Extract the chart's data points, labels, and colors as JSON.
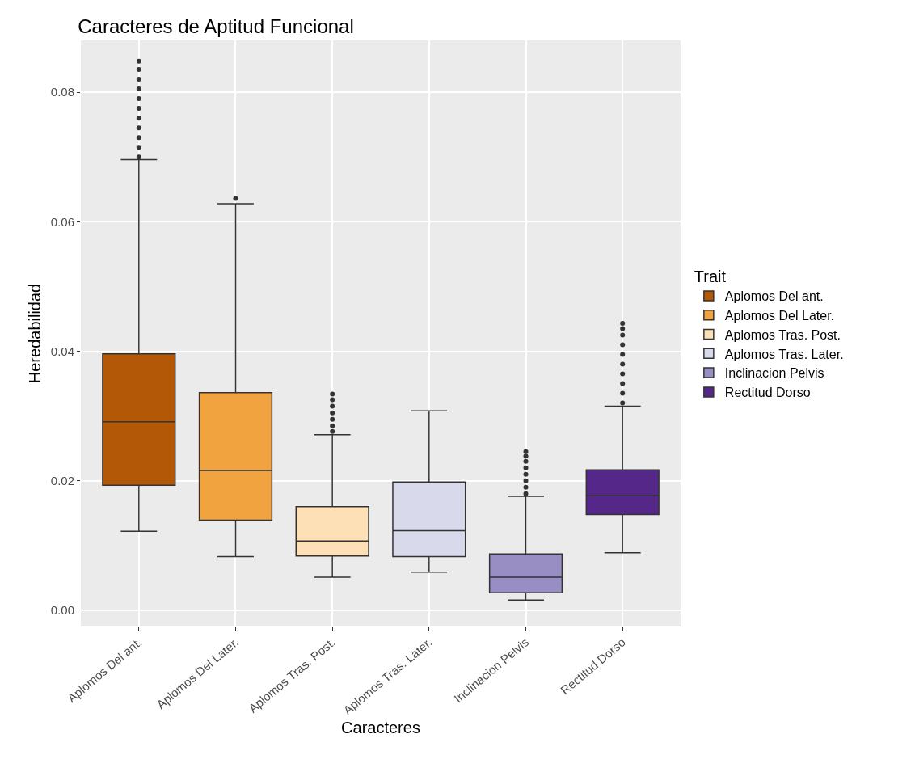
{
  "chart_data": {
    "type": "box",
    "title": "Caracteres de Aptitud Funcional",
    "xlabel": "Caracteres",
    "ylabel": "Heredabilidad",
    "legend_title": "Trait",
    "categories": [
      "Aplomos Del ant.",
      "Aplomos Del Later.",
      "Aplomos Tras. Post.",
      "Aplomos Tras. Later.",
      "Inclinacion Pelvis",
      "Rectitud Dorso"
    ],
    "series": [
      {
        "name": "Aplomos Del ant.",
        "color": "#b35806",
        "boxes": [
          {
            "low": 0.0122,
            "q1": 0.0193,
            "median": 0.0291,
            "q3": 0.0396,
            "high": 0.0696,
            "outliers": [
              0.07,
              0.0715,
              0.073,
              0.0745,
              0.076,
              0.0775,
              0.079,
              0.0805,
              0.082,
              0.0835,
              0.0848
            ]
          },
          null,
          null,
          null,
          null,
          null
        ]
      },
      {
        "name": "Aplomos Del Later.",
        "color": "#f1a340",
        "boxes": [
          null,
          {
            "low": 0.0083,
            "q1": 0.0139,
            "median": 0.0216,
            "q3": 0.0336,
            "high": 0.0628,
            "outliers": [
              0.0636
            ]
          },
          null,
          null,
          null,
          null
        ]
      },
      {
        "name": "Aplomos Tras. Post.",
        "color": "#fee0b6",
        "boxes": [
          null,
          null,
          {
            "low": 0.0051,
            "q1": 0.0084,
            "median": 0.0107,
            "q3": 0.016,
            "high": 0.0271,
            "outliers": [
              0.0276,
              0.0285,
              0.0295,
              0.0305,
              0.0315,
              0.0325,
              0.0334
            ]
          },
          null,
          null,
          null
        ]
      },
      {
        "name": "Aplomos Tras. Later.",
        "color": "#d8daeb",
        "boxes": [
          null,
          null,
          null,
          {
            "low": 0.0059,
            "q1": 0.0083,
            "median": 0.0123,
            "q3": 0.0198,
            "high": 0.0308
          },
          null,
          null
        ]
      },
      {
        "name": "Inclinacion Pelvis",
        "color": "#998ec3",
        "boxes": [
          null,
          null,
          null,
          null,
          {
            "low": 0.0016,
            "q1": 0.0027,
            "median": 0.0051,
            "q3": 0.0087,
            "high": 0.0176,
            "outliers": [
              0.018,
              0.019,
              0.02,
              0.021,
              0.022,
              0.023,
              0.0238,
              0.0245
            ]
          },
          null
        ]
      },
      {
        "name": "Rectitud Dorso",
        "color": "#542788",
        "boxes": [
          null,
          null,
          null,
          null,
          null,
          {
            "low": 0.0089,
            "q1": 0.0148,
            "median": 0.0177,
            "q3": 0.0217,
            "high": 0.0315,
            "outliers": [
              0.032,
              0.0335,
              0.035,
              0.0365,
              0.038,
              0.0395,
              0.041,
              0.0425,
              0.0435,
              0.0443
            ]
          }
        ]
      }
    ],
    "ylim": [
      -0.0025,
      0.088
    ],
    "yticks": [
      {
        "value": 0,
        "label": "0.00"
      },
      {
        "value": 0.02,
        "label": "0.02"
      },
      {
        "value": 0.04,
        "label": "0.04"
      },
      {
        "value": 0.06,
        "label": "0.06"
      },
      {
        "value": 0.08,
        "label": "0.08"
      }
    ],
    "grid": true,
    "legend": "right"
  }
}
